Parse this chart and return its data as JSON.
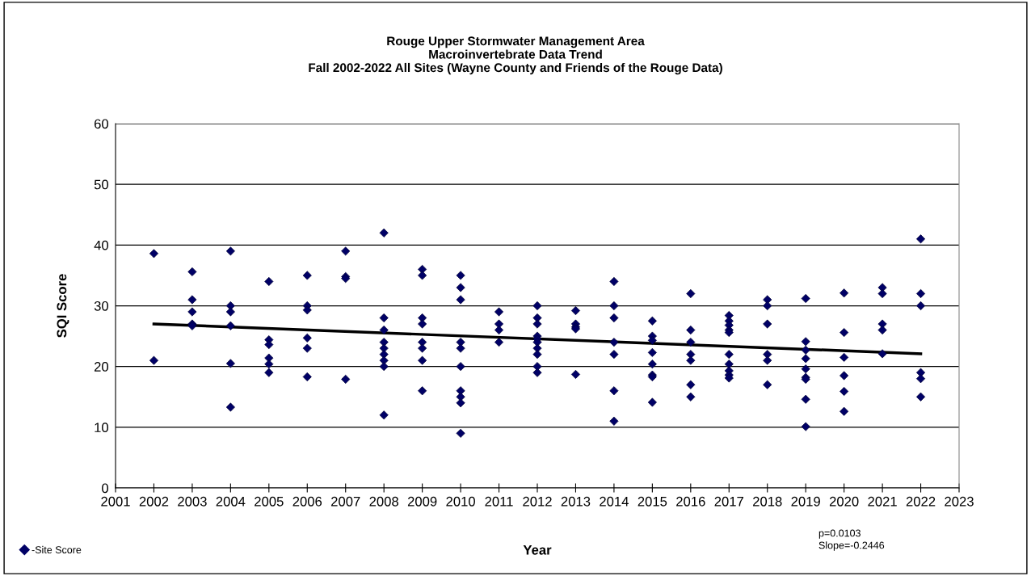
{
  "chart_data": {
    "type": "scatter",
    "title": "Rouge Upper Stormwater Management Area\nMacroinvertebrate Data Trend\nFall 2002-2022 All Sites (Wayne County and Friends of the Rouge Data)",
    "xlabel": "Year",
    "ylabel": "SQI Score",
    "series": [
      {
        "name": "-Site Score",
        "color": "#000066",
        "marker": "diamond",
        "x": [
          2002,
          2002,
          2003,
          2003,
          2003,
          2003,
          2003,
          2004,
          2004,
          2004,
          2004,
          2004,
          2004,
          2005,
          2005,
          2005,
          2005,
          2005,
          2005,
          2006,
          2006,
          2006,
          2006,
          2006,
          2006,
          2007,
          2007,
          2007,
          2007,
          2008,
          2008,
          2008,
          2008,
          2008,
          2008,
          2008,
          2008,
          2008,
          2009,
          2009,
          2009,
          2009,
          2009,
          2009,
          2009,
          2009,
          2010,
          2010,
          2010,
          2010,
          2010,
          2010,
          2010,
          2010,
          2010,
          2010,
          2011,
          2011,
          2011,
          2011,
          2012,
          2012,
          2012,
          2012,
          2012,
          2012,
          2012,
          2012,
          2012,
          2012,
          2013,
          2013,
          2013,
          2013,
          2013,
          2014,
          2014,
          2014,
          2014,
          2014,
          2014,
          2014,
          2015,
          2015,
          2015,
          2015,
          2015,
          2015,
          2015,
          2015,
          2016,
          2016,
          2016,
          2016,
          2016,
          2016,
          2016,
          2017,
          2017,
          2017,
          2017,
          2017,
          2017,
          2017,
          2017,
          2017,
          2017,
          2018,
          2018,
          2018,
          2018,
          2018,
          2018,
          2019,
          2019,
          2019,
          2019,
          2019,
          2019,
          2019,
          2019,
          2019,
          2020,
          2020,
          2020,
          2020,
          2020,
          2020,
          2021,
          2021,
          2021,
          2021,
          2021,
          2022,
          2022,
          2022,
          2022,
          2022,
          2022
        ],
        "values": [
          38.6,
          21,
          35.6,
          31,
          29,
          27,
          26.7,
          39,
          30,
          29,
          26.7,
          20.5,
          13.3,
          34,
          24.4,
          23.6,
          21.4,
          20.4,
          19,
          35,
          30,
          29.3,
          24.7,
          23,
          18.3,
          39,
          34.8,
          34.5,
          17.9,
          42,
          28,
          26,
          24,
          23,
          22,
          21,
          20,
          12,
          36,
          35,
          28,
          27,
          24,
          23,
          21,
          16,
          35,
          33,
          31,
          24,
          23,
          20,
          16,
          15,
          14,
          9,
          29,
          27,
          26,
          24,
          30,
          28,
          27,
          25,
          24.5,
          24,
          23,
          22,
          20,
          19,
          29.2,
          27,
          26.5,
          26.2,
          18.7,
          34,
          30,
          28,
          24,
          22,
          16,
          11,
          27.5,
          25,
          24.3,
          22.3,
          20.4,
          18.6,
          18.3,
          14.1,
          32,
          26,
          24,
          22,
          21,
          17,
          15,
          28.4,
          27.5,
          26.8,
          26,
          25.6,
          22,
          20.4,
          19.3,
          18.6,
          18.1,
          31,
          30,
          27,
          22,
          21,
          17,
          31.2,
          24.1,
          22.7,
          21.3,
          19.6,
          18.2,
          17.9,
          14.6,
          10.1,
          32.1,
          25.6,
          21.5,
          18.5,
          15.9,
          12.6,
          33,
          32,
          27,
          26,
          22.1,
          41,
          32,
          30,
          19,
          18,
          15
        ]
      },
      {
        "type": "line",
        "color": "#000000",
        "x": [
          2002,
          2022
        ],
        "values": [
          27.0,
          22.1
        ]
      }
    ],
    "xlim": [
      2001,
      2023
    ],
    "xticks": [
      2001,
      2002,
      2003,
      2004,
      2005,
      2006,
      2007,
      2008,
      2009,
      2010,
      2011,
      2012,
      2013,
      2014,
      2015,
      2016,
      2017,
      2018,
      2019,
      2020,
      2021,
      2022,
      2023
    ],
    "ylim": [
      0,
      60
    ],
    "yticks": [
      0,
      10,
      20,
      30,
      40,
      50,
      60
    ],
    "grid": "y",
    "legend": "bottom left",
    "annotations": [
      "p=0.0103",
      "Slope=-0.2446"
    ]
  }
}
